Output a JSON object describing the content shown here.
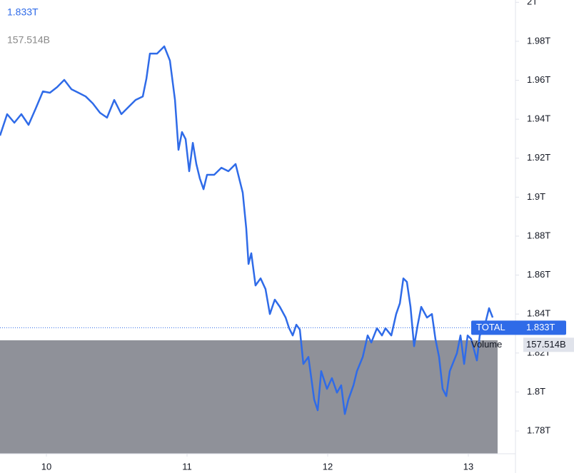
{
  "chart_data": {
    "type": "line",
    "x": [
      9.67,
      9.721,
      9.772,
      9.822,
      9.873,
      9.924,
      9.975,
      10.025,
      10.076,
      10.127,
      10.178,
      10.228,
      10.279,
      10.33,
      10.381,
      10.431,
      10.482,
      10.533,
      10.584,
      10.634,
      10.685,
      10.711,
      10.736,
      10.787,
      10.838,
      10.878,
      10.914,
      10.939,
      10.964,
      10.99,
      11.015,
      11.041,
      11.066,
      11.091,
      11.117,
      11.142,
      11.193,
      11.244,
      11.294,
      11.345,
      11.396,
      11.421,
      11.437,
      11.457,
      11.487,
      11.523,
      11.558,
      11.589,
      11.624,
      11.66,
      11.701,
      11.726,
      11.751,
      11.777,
      11.802,
      11.827,
      11.863,
      11.904,
      11.929,
      11.954,
      11.995,
      12.03,
      12.066,
      12.096,
      12.122,
      12.147,
      12.183,
      12.208,
      12.249,
      12.284,
      12.31,
      12.35,
      12.386,
      12.411,
      12.452,
      12.487,
      12.513,
      12.538,
      12.563,
      12.589,
      12.614,
      12.64,
      12.665,
      12.706,
      12.741,
      12.766,
      12.792,
      12.817,
      12.843,
      12.868,
      12.919,
      12.944,
      12.97,
      12.995,
      13.02,
      13.061,
      13.081,
      13.112,
      13.147,
      13.173
    ],
    "series": [
      {
        "name": "TOTAL",
        "color": "#2f6be8",
        "values": [
          1.9316,
          1.9426,
          1.9382,
          1.9426,
          1.9371,
          1.9455,
          1.9543,
          1.9536,
          1.9565,
          1.9602,
          1.9554,
          1.9536,
          1.9517,
          1.9481,
          1.9433,
          1.9408,
          1.9499,
          1.9426,
          1.9463,
          1.9499,
          1.9517,
          1.9609,
          1.9737,
          1.9737,
          1.9774,
          1.9701,
          1.9499,
          1.9243,
          1.9334,
          1.9298,
          1.9133,
          1.9279,
          1.917,
          1.9096,
          1.9041,
          1.9115,
          1.9115,
          1.9151,
          1.9133,
          1.917,
          1.9023,
          1.884,
          1.8657,
          1.8712,
          1.8547,
          1.8583,
          1.8528,
          1.84,
          1.8474,
          1.8437,
          1.8382,
          1.8327,
          1.829,
          1.8345,
          1.832,
          1.8144,
          1.818,
          1.7961,
          1.7906,
          1.8107,
          1.8016,
          1.8071,
          1.7997,
          1.8034,
          1.7887,
          1.7961,
          1.8034,
          1.8107,
          1.818,
          1.829,
          1.8254,
          1.8327,
          1.829,
          1.8327,
          1.829,
          1.84,
          1.8455,
          1.8583,
          1.8565,
          1.8437,
          1.8235,
          1.8345,
          1.8437,
          1.8382,
          1.84,
          1.8272,
          1.818,
          1.8016,
          1.7979,
          1.8107,
          1.8199,
          1.829,
          1.8144,
          1.829,
          1.8272,
          1.8162,
          1.829,
          1.8327,
          1.843,
          1.8382
        ]
      }
    ],
    "current": {
      "value": 1.833,
      "label": "1.833T"
    },
    "volume": {
      "name": "Volume",
      "value": 157.514,
      "label": "157.514B"
    },
    "xlim": [
      9.67,
      13.335
    ],
    "xticks": [
      10,
      11,
      12,
      13
    ],
    "ylim": [
      1.7683,
      2.0012
    ],
    "yticks": [
      {
        "value": 2,
        "label": "2T"
      },
      {
        "value": 1.98,
        "label": "1.98T"
      },
      {
        "value": 1.96,
        "label": "1.96T"
      },
      {
        "value": 1.94,
        "label": "1.94T"
      },
      {
        "value": 1.92,
        "label": "1.92T"
      },
      {
        "value": 1.9,
        "label": "1.9T"
      },
      {
        "value": 1.88,
        "label": "1.88T"
      },
      {
        "value": 1.86,
        "label": "1.86T"
      },
      {
        "value": 1.84,
        "label": "1.84T"
      },
      {
        "value": 1.82,
        "label": "1.82T"
      },
      {
        "value": 1.8,
        "label": "1.8T"
      },
      {
        "value": 1.78,
        "label": "1.78T"
      }
    ]
  }
}
